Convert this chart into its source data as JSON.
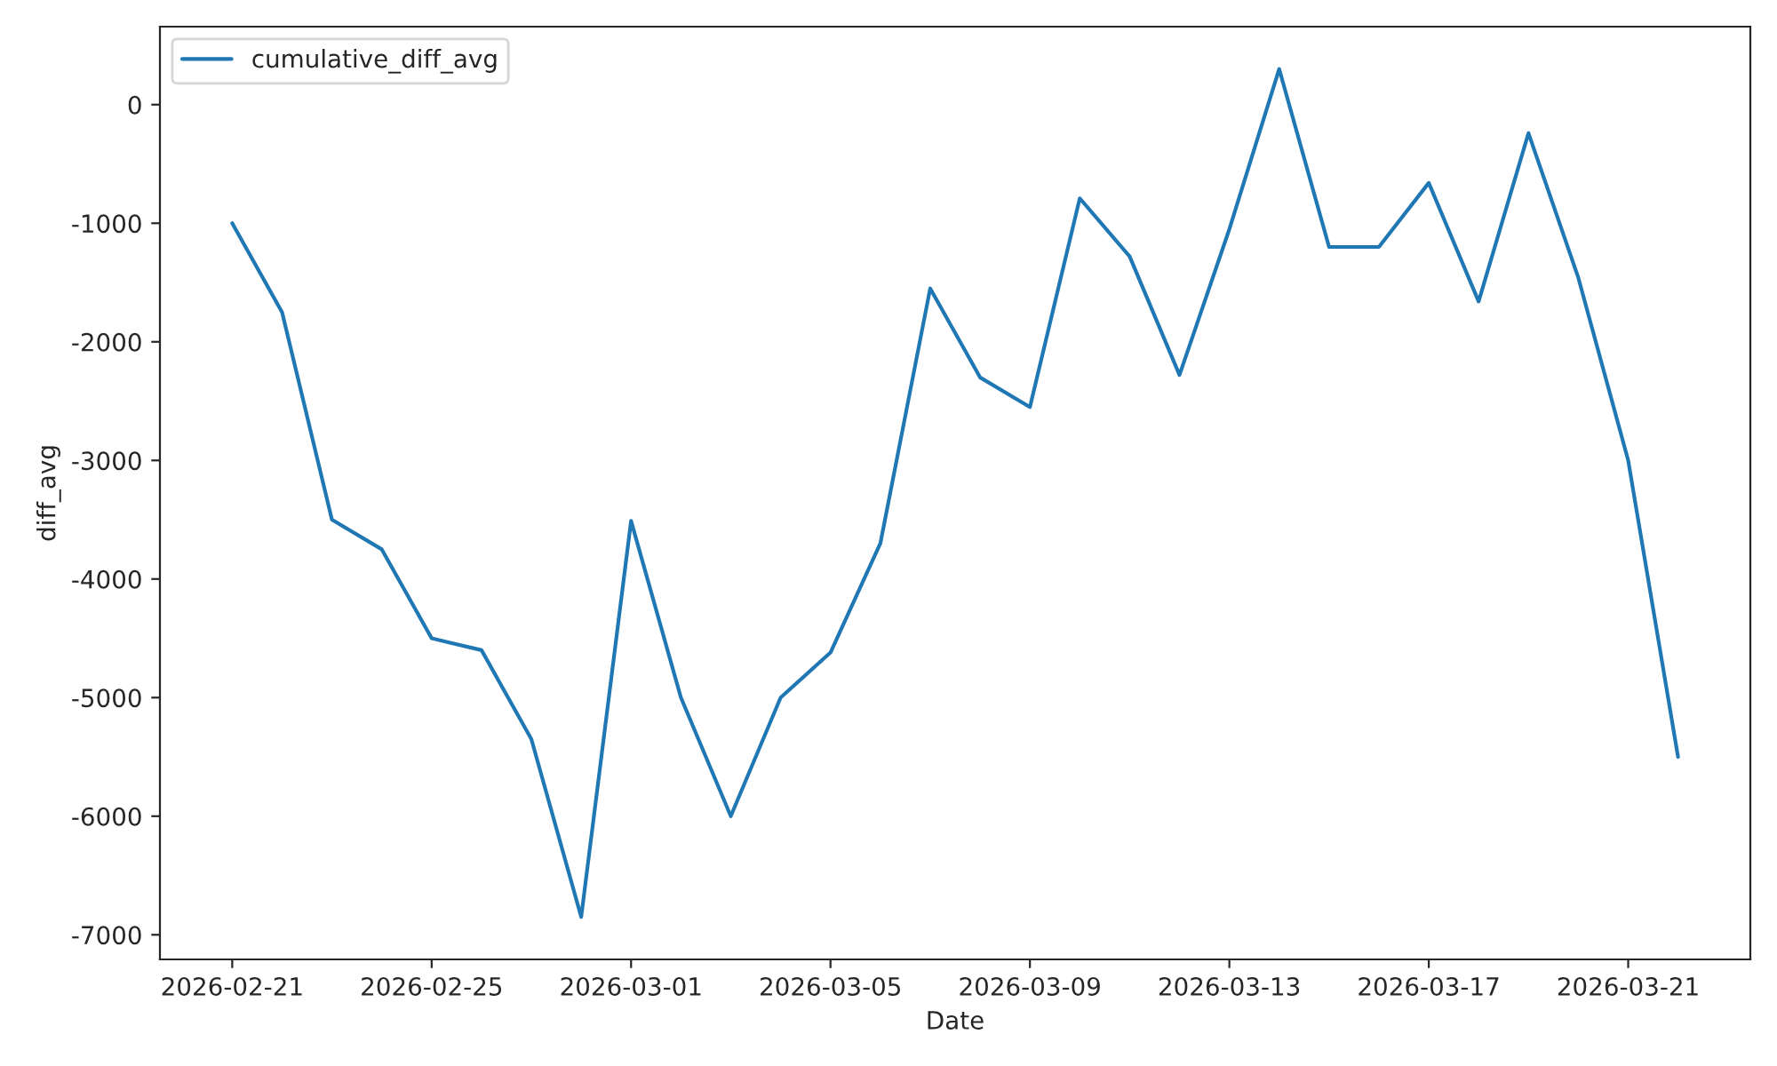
{
  "chart_data": {
    "type": "line",
    "xlabel": "Date",
    "ylabel": "diff_avg",
    "x": [
      "2026-02-21",
      "2026-02-22",
      "2026-02-23",
      "2026-02-24",
      "2026-02-25",
      "2026-02-26",
      "2026-02-27",
      "2026-02-28",
      "2026-03-01",
      "2026-03-02",
      "2026-03-03",
      "2026-03-04",
      "2026-03-05",
      "2026-03-06",
      "2026-03-07",
      "2026-03-08",
      "2026-03-09",
      "2026-03-10",
      "2026-03-11",
      "2026-03-12",
      "2026-03-13",
      "2026-03-14",
      "2026-03-15",
      "2026-03-16",
      "2026-03-17",
      "2026-03-18",
      "2026-03-19",
      "2026-03-20",
      "2026-03-21",
      "2026-03-22"
    ],
    "series": [
      {
        "name": "cumulative_diff_avg",
        "color": "#1f77b4",
        "values": [
          -1000,
          -1750,
          -3500,
          -3750,
          -4500,
          -4600,
          -5350,
          -6850,
          -3510,
          -5000,
          -6000,
          -5000,
          -4620,
          -3700,
          -1550,
          -2300,
          -2550,
          -790,
          -1280,
          -2280,
          -1050,
          300,
          -1200,
          -1200,
          -660,
          -1660,
          -240,
          -1460,
          -3000,
          -5500
        ]
      }
    ],
    "xlim": [
      "2026-02-19T13:12",
      "2026-03-23T10:48"
    ],
    "xticks": [
      "2026-02-21",
      "2026-02-25",
      "2026-03-01",
      "2026-03-05",
      "2026-03-09",
      "2026-03-13",
      "2026-03-17",
      "2026-03-21"
    ],
    "ylim": [
      -7207.5,
      657.5
    ],
    "yticks": [
      -7000,
      -6000,
      -5000,
      -4000,
      -3000,
      -2000,
      -1000,
      0
    ],
    "legend": "top left",
    "grid": false,
    "marker": "none",
    "line_style": "solid"
  }
}
